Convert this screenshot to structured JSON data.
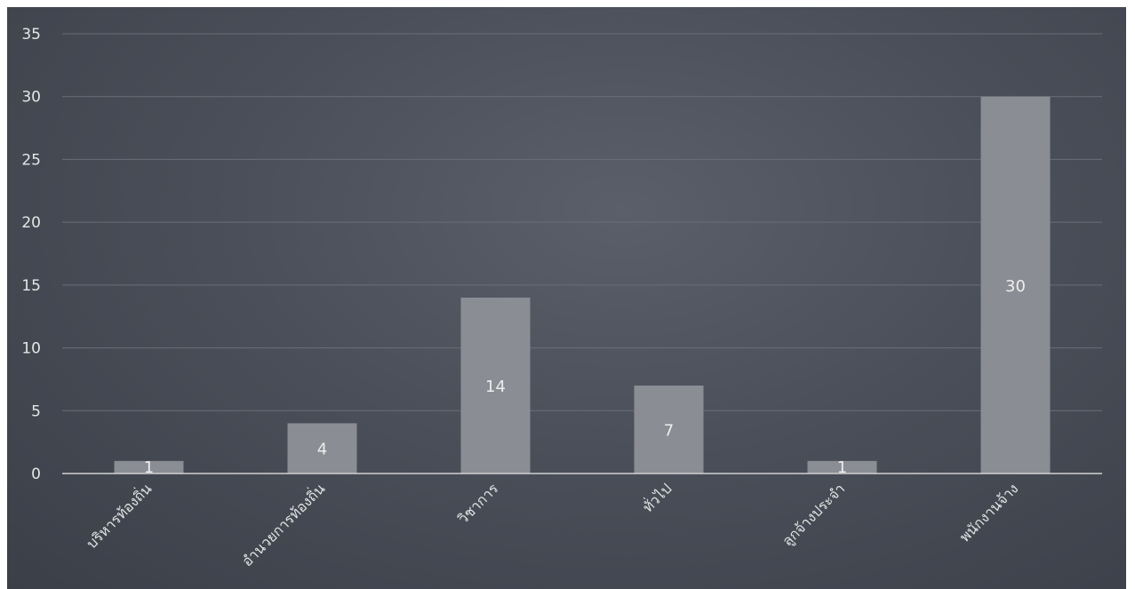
{
  "chart_data": {
    "type": "bar",
    "title": "",
    "xlabel": "",
    "ylabel": "",
    "categories": [
      "บริหารท้องถิ่น",
      "อำนวยการท้องถิ่น",
      "วิชาการ",
      "ทั่วไป",
      "ลูกจ้างประจำ",
      "พนักงานจ้าง"
    ],
    "values": [
      1,
      4,
      14,
      7,
      1,
      30
    ],
    "ylim": [
      0,
      35
    ],
    "yticks": [
      0,
      5,
      10,
      15,
      20,
      25,
      30,
      35
    ],
    "grid": true,
    "legend": "none",
    "colors": {
      "background": "#4a4f59",
      "bar": "#8a8d94",
      "gridline": "#6a6e78",
      "axis": "#d0d0d0"
    }
  }
}
